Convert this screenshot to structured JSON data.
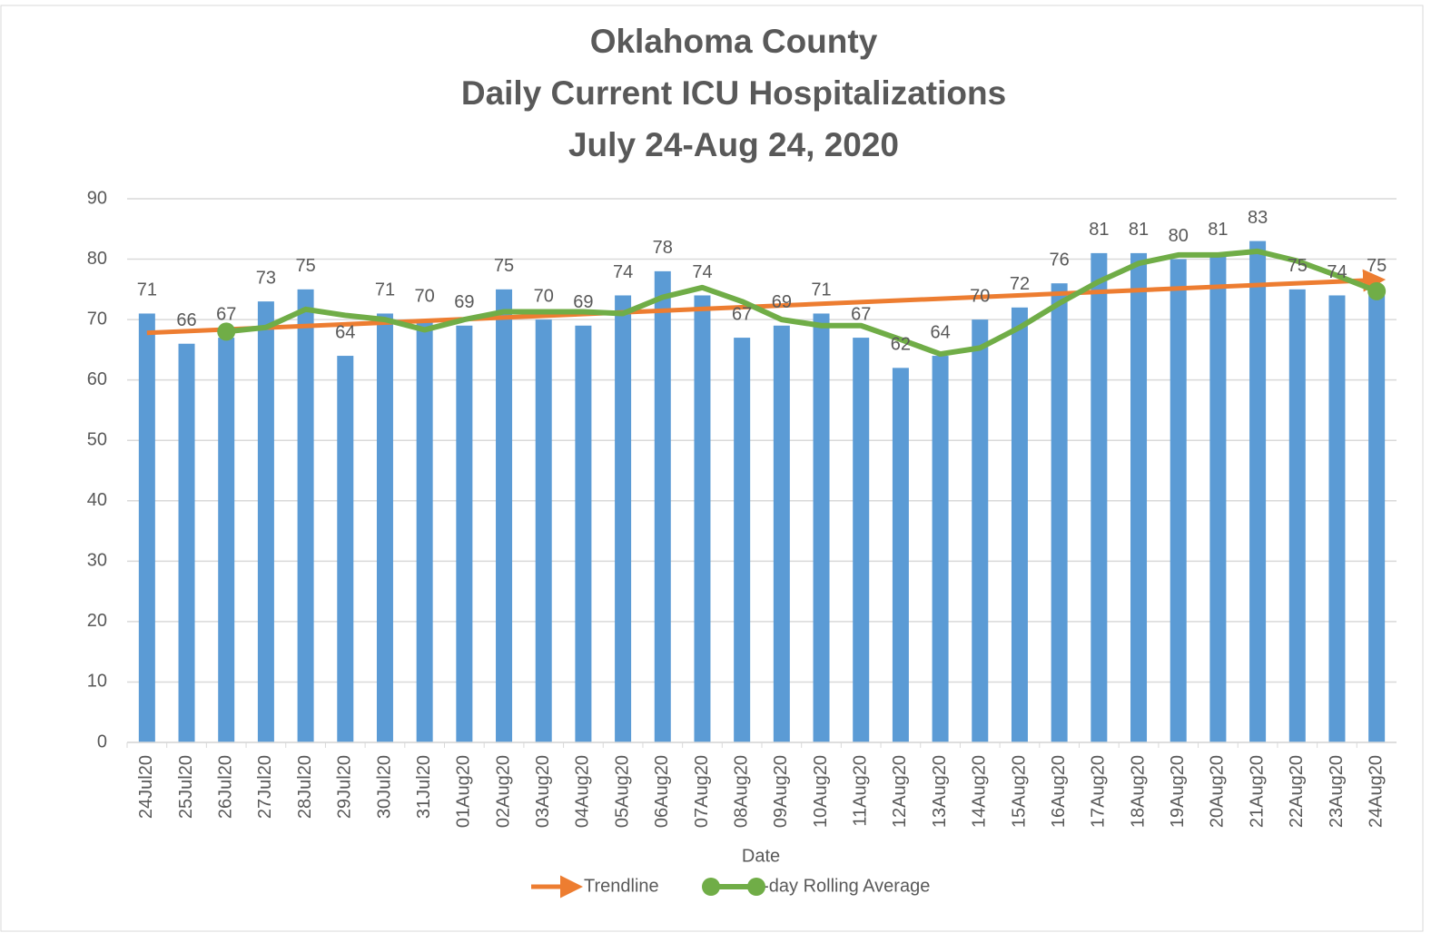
{
  "chart_data": {
    "type": "bar",
    "title": [
      "Oklahoma County",
      "Daily Current ICU Hospitalizations",
      "July 24-Aug 24, 2020"
    ],
    "x_label": "Date",
    "categories": [
      "24Jul20",
      "25Jul20",
      "26Jul20",
      "27Jul20",
      "28Jul20",
      "29Jul20",
      "30Jul20",
      "31Jul20",
      "01Aug20",
      "02Aug20",
      "03Aug20",
      "04Aug20",
      "05Aug20",
      "06Aug20",
      "07Aug20",
      "08Aug20",
      "09Aug20",
      "10Aug20",
      "11Aug20",
      "12Aug20",
      "13Aug20",
      "14Aug20",
      "15Aug20",
      "16Aug20",
      "17Aug20",
      "18Aug20",
      "19Aug20",
      "20Aug20",
      "21Aug20",
      "22Aug20",
      "23Aug20",
      "24Aug20"
    ],
    "values": [
      71,
      66,
      67,
      73,
      75,
      64,
      71,
      70,
      69,
      75,
      70,
      69,
      74,
      78,
      74,
      67,
      69,
      71,
      67,
      62,
      64,
      70,
      72,
      76,
      81,
      81,
      80,
      81,
      83,
      75,
      74,
      75
    ],
    "color": "#5b9bd5",
    "series": [
      {
        "name": "3-day Rolling Average",
        "color": "#70ad47",
        "type": "line",
        "values": [
          null,
          null,
          68.0,
          68.7,
          71.7,
          70.7,
          70.0,
          68.3,
          70.0,
          71.3,
          71.3,
          71.3,
          71.0,
          73.7,
          75.3,
          73.0,
          70.0,
          69.0,
          69.0,
          66.7,
          64.3,
          65.3,
          68.7,
          72.7,
          76.3,
          79.3,
          80.7,
          80.7,
          81.3,
          79.7,
          77.3,
          74.7
        ]
      }
    ],
    "trendline": {
      "name": "Trendline",
      "color": "#ed7d31",
      "start": 67.8,
      "end": 76.5
    },
    "ylim": [
      0,
      90
    ],
    "yticks": [
      0,
      10,
      20,
      30,
      40,
      50,
      60,
      70,
      80,
      90
    ],
    "grid": true
  }
}
